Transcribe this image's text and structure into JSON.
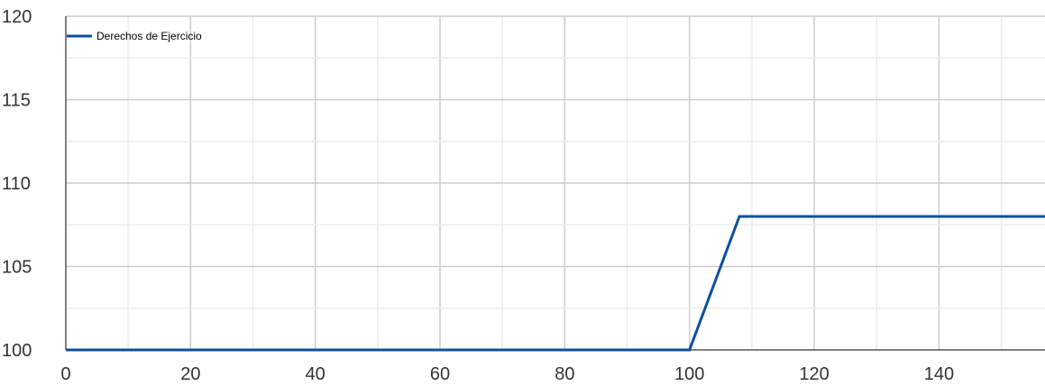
{
  "chart_data": {
    "type": "line",
    "title": "",
    "xlabel": "",
    "ylabel": "",
    "xlim": [
      0,
      157
    ],
    "ylim": [
      100,
      120
    ],
    "x_ticks": [
      0,
      20,
      40,
      60,
      80,
      100,
      120,
      140
    ],
    "y_ticks": [
      100,
      105,
      110,
      115,
      120
    ],
    "grid": true,
    "legend_position": "top-left",
    "series": [
      {
        "name": "Derechos de Ejercicio",
        "color": "#0d4f9c",
        "x": [
          0,
          100,
          108,
          157
        ],
        "y": [
          100,
          100,
          108,
          108
        ]
      }
    ]
  }
}
